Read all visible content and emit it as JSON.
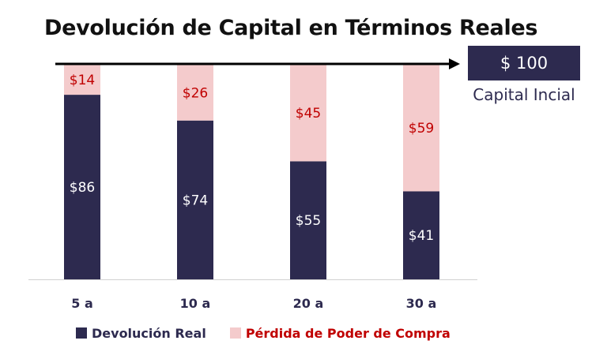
{
  "title": "Devolución de Capital en Términos Reales",
  "capital_box": {
    "value": "$ 100",
    "label": "Capital Incial"
  },
  "legend": [
    {
      "label": "Devolución Real",
      "color": "#2d2a4f",
      "text_color": "#2d2a4f"
    },
    {
      "label": "Pérdida de Poder de Compra",
      "color": "#f4cbcc",
      "text_color": "#c00000"
    }
  ],
  "chart_data": {
    "type": "bar",
    "stacked": true,
    "categories": [
      "5 a",
      "10 a",
      "20 a",
      "30 a"
    ],
    "series": [
      {
        "name": "Devolución Real",
        "values": [
          86,
          74,
          55,
          41
        ],
        "labels": [
          "$86",
          "$74",
          "$55",
          "$41"
        ],
        "color": "#2d2a4f",
        "label_color": "#ffffff"
      },
      {
        "name": "Pérdida de Poder de Compra",
        "values": [
          14,
          26,
          45,
          59
        ],
        "labels": [
          "$14",
          "$26",
          "$45",
          "$59"
        ],
        "color": "#f4cbcc",
        "label_color": "#c00000"
      }
    ],
    "ylim": [
      0,
      100
    ],
    "grid": false,
    "legend_position": "bottom"
  }
}
